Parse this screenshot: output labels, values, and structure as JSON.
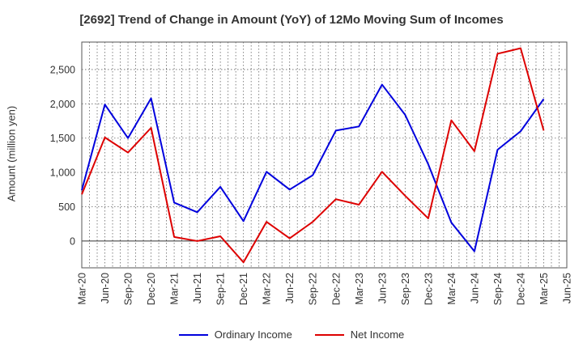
{
  "chart_data": {
    "type": "line",
    "title": "[2692]  Trend of Change in Amount (YoY) of 12Mo Moving Sum of Incomes",
    "xlabel": "",
    "ylabel": "Amount (million yen)",
    "x_ticks": [
      "Mar-20",
      "Jun-20",
      "Sep-20",
      "Dec-20",
      "Mar-21",
      "Jun-21",
      "Sep-21",
      "Dec-21",
      "Mar-22",
      "Jun-22",
      "Sep-22",
      "Dec-22",
      "Mar-23",
      "Jun-23",
      "Sep-23",
      "Dec-23",
      "Mar-24",
      "Jun-24",
      "Sep-24",
      "Dec-24",
      "Mar-25",
      "Jun-25"
    ],
    "y_ticks": [
      0,
      500,
      1000,
      1500,
      2000,
      2500
    ],
    "y_tick_labels": [
      "0",
      "500",
      "1,000",
      "1,500",
      "2,000",
      "2,500"
    ],
    "ylim": [
      -390,
      2900
    ],
    "grid": true,
    "legend_position": "bottom",
    "series": [
      {
        "name": "Ordinary Income",
        "color": "#0000dd",
        "x": [
          "Mar-20",
          "Jun-20",
          "Sep-20",
          "Dec-20",
          "Mar-21",
          "Jun-21",
          "Sep-21",
          "Dec-21",
          "Mar-22",
          "Jun-22",
          "Sep-22",
          "Dec-22",
          "Mar-23",
          "Jun-23",
          "Sep-23",
          "Dec-23",
          "Mar-24",
          "Jun-24",
          "Sep-24",
          "Dec-24",
          "Mar-25"
        ],
        "values": [
          740,
          1990,
          1500,
          2080,
          560,
          420,
          790,
          290,
          1010,
          750,
          960,
          1610,
          1670,
          2280,
          1840,
          1120,
          270,
          -150,
          1330,
          1600,
          2070
        ]
      },
      {
        "name": "Net Income",
        "color": "#dd0000",
        "x": [
          "Mar-20",
          "Jun-20",
          "Sep-20",
          "Dec-20",
          "Mar-21",
          "Jun-21",
          "Sep-21",
          "Dec-21",
          "Mar-22",
          "Jun-22",
          "Sep-22",
          "Dec-22",
          "Mar-23",
          "Jun-23",
          "Sep-23",
          "Dec-23",
          "Mar-24",
          "Jun-24",
          "Sep-24",
          "Dec-24",
          "Mar-25"
        ],
        "values": [
          680,
          1510,
          1290,
          1650,
          60,
          0,
          70,
          -310,
          280,
          40,
          280,
          610,
          530,
          1010,
          660,
          330,
          1760,
          1310,
          2730,
          2810,
          1610
        ]
      }
    ]
  }
}
